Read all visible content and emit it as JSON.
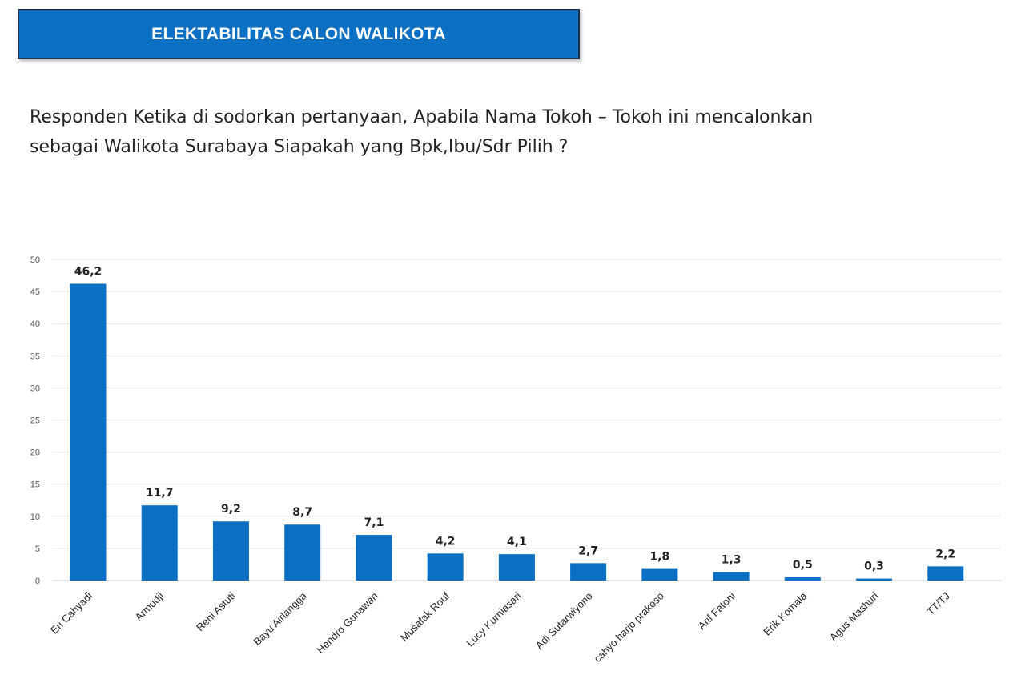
{
  "header": {
    "title": "ELEKTABILITAS CALON WALIKOTA"
  },
  "question": {
    "line1": "Responden Ketika di sodorkan pertanyaan, Apabila Nama Tokoh – Tokoh  ini mencalonkan",
    "line2": "sebagai Walikota Surabaya Siapakah yang Bpk,Ibu/Sdr Pilih ?"
  },
  "chart_data": {
    "type": "bar",
    "categories": [
      "Eri Cahyadi",
      "Armudji",
      "Reni Astuti",
      "Bayu Airlangga",
      "Hendro Gunawan",
      "Musafak Rouf",
      "Lucy Kurniasari",
      "Adi Sutarwiyono",
      "cahyo harjo prakoso",
      "Arif Fatoni",
      "Erik Komala",
      "Agus Mashuri",
      "TT/TJ"
    ],
    "values": [
      46.2,
      11.7,
      9.2,
      8.7,
      7.1,
      4.2,
      4.1,
      2.7,
      1.8,
      1.3,
      0.5,
      0.3,
      2.2
    ],
    "value_labels": [
      "46,2",
      "11,7",
      "9,2",
      "8,7",
      "7,1",
      "4,2",
      "4,1",
      "2,7",
      "1,8",
      "1,3",
      "0,5",
      "0,3",
      "2,2"
    ],
    "yticks": [
      0,
      5,
      10,
      15,
      20,
      25,
      30,
      35,
      40,
      45,
      50
    ],
    "ylim": [
      0,
      50
    ],
    "grid": true,
    "bar_color": "#0b6fc4",
    "grid_color": "#e3e3e3"
  }
}
